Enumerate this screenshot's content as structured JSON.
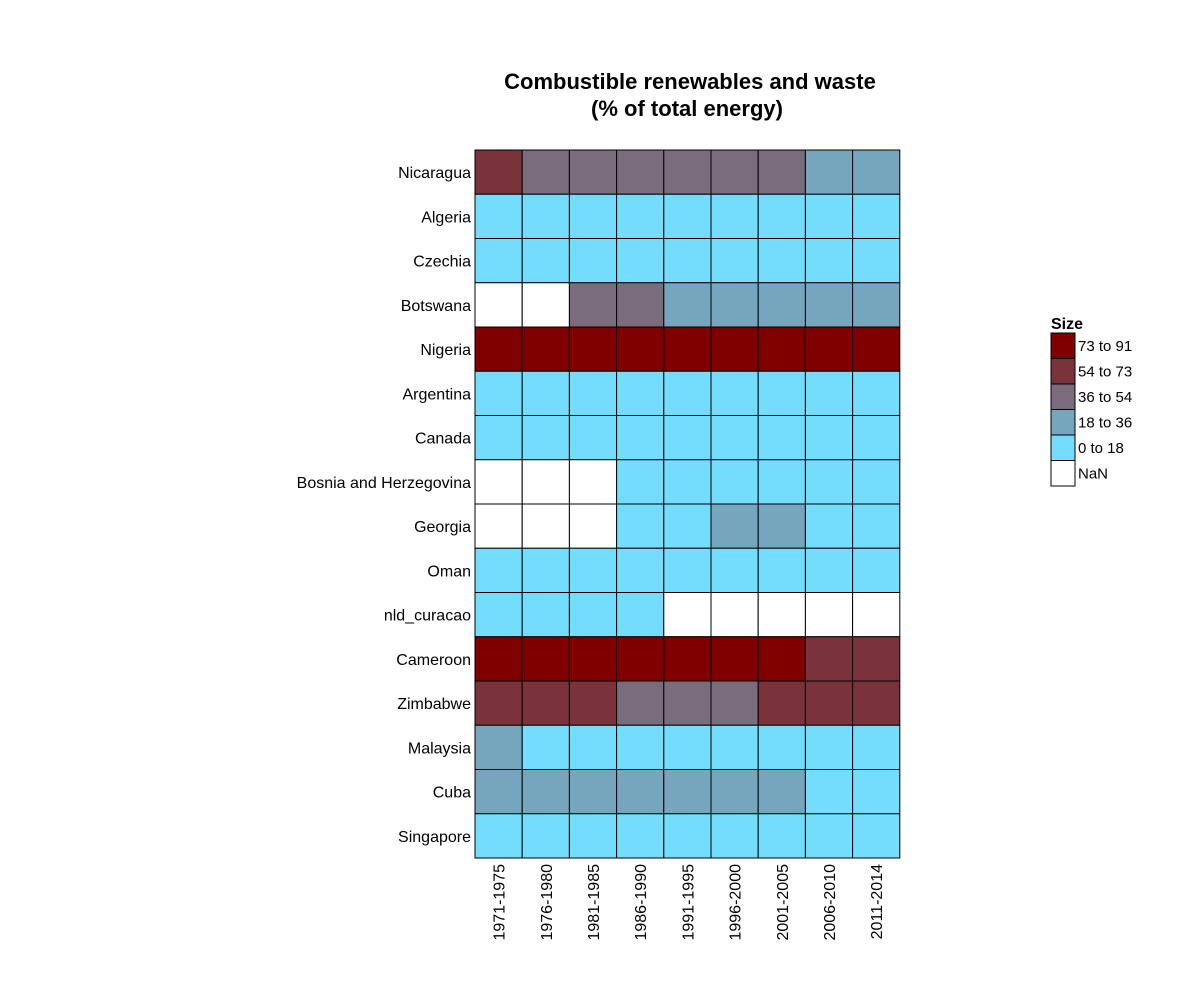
{
  "chart_data": {
    "type": "heatmap",
    "title_lines": [
      "Combustible renewables and waste",
      "(% of total energy)"
    ],
    "rows": [
      "Nicaragua",
      "Algeria",
      "Czechia",
      "Botswana",
      "Nigeria",
      "Argentina",
      "Canada",
      "Bosnia and Herzegovina",
      "Georgia",
      "Oman",
      "nld_curacao",
      "Cameroon",
      "Zimbabwe",
      "Malaysia",
      "Cuba",
      "Singapore"
    ],
    "columns": [
      "1971-1975",
      "1976-1980",
      "1981-1985",
      "1986-1990",
      "1991-1995",
      "1996-2000",
      "2001-2005",
      "2006-2010",
      "2011-2014"
    ],
    "cell_bins": [
      [
        "54 to 73",
        "36 to 54",
        "36 to 54",
        "36 to 54",
        "36 to 54",
        "36 to 54",
        "36 to 54",
        "18 to 36",
        "18 to 36"
      ],
      [
        "0 to 18",
        "0 to 18",
        "0 to 18",
        "0 to 18",
        "0 to 18",
        "0 to 18",
        "0 to 18",
        "0 to 18",
        "0 to 18"
      ],
      [
        "0 to 18",
        "0 to 18",
        "0 to 18",
        "0 to 18",
        "0 to 18",
        "0 to 18",
        "0 to 18",
        "0 to 18",
        "0 to 18"
      ],
      [
        "NaN",
        "NaN",
        "36 to 54",
        "36 to 54",
        "18 to 36",
        "18 to 36",
        "18 to 36",
        "18 to 36",
        "18 to 36"
      ],
      [
        "73 to 91",
        "73 to 91",
        "73 to 91",
        "73 to 91",
        "73 to 91",
        "73 to 91",
        "73 to 91",
        "73 to 91",
        "73 to 91"
      ],
      [
        "0 to 18",
        "0 to 18",
        "0 to 18",
        "0 to 18",
        "0 to 18",
        "0 to 18",
        "0 to 18",
        "0 to 18",
        "0 to 18"
      ],
      [
        "0 to 18",
        "0 to 18",
        "0 to 18",
        "0 to 18",
        "0 to 18",
        "0 to 18",
        "0 to 18",
        "0 to 18",
        "0 to 18"
      ],
      [
        "NaN",
        "NaN",
        "NaN",
        "0 to 18",
        "0 to 18",
        "0 to 18",
        "0 to 18",
        "0 to 18",
        "0 to 18"
      ],
      [
        "NaN",
        "NaN",
        "NaN",
        "0 to 18",
        "0 to 18",
        "18 to 36",
        "18 to 36",
        "0 to 18",
        "0 to 18"
      ],
      [
        "0 to 18",
        "0 to 18",
        "0 to 18",
        "0 to 18",
        "0 to 18",
        "0 to 18",
        "0 to 18",
        "0 to 18",
        "0 to 18"
      ],
      [
        "0 to 18",
        "0 to 18",
        "0 to 18",
        "0 to 18",
        "NaN",
        "NaN",
        "NaN",
        "NaN",
        "NaN"
      ],
      [
        "73 to 91",
        "73 to 91",
        "73 to 91",
        "73 to 91",
        "73 to 91",
        "73 to 91",
        "73 to 91",
        "54 to 73",
        "54 to 73"
      ],
      [
        "54 to 73",
        "54 to 73",
        "54 to 73",
        "36 to 54",
        "36 to 54",
        "36 to 54",
        "54 to 73",
        "54 to 73",
        "54 to 73"
      ],
      [
        "18 to 36",
        "0 to 18",
        "0 to 18",
        "0 to 18",
        "0 to 18",
        "0 to 18",
        "0 to 18",
        "0 to 18",
        "0 to 18"
      ],
      [
        "18 to 36",
        "18 to 36",
        "18 to 36",
        "18 to 36",
        "18 to 36",
        "18 to 36",
        "18 to 36",
        "0 to 18",
        "0 to 18"
      ],
      [
        "0 to 18",
        "0 to 18",
        "0 to 18",
        "0 to 18",
        "0 to 18",
        "0 to 18",
        "0 to 18",
        "0 to 18",
        "0 to 18"
      ]
    ],
    "legend": {
      "title": "Size",
      "placement": "right",
      "items": [
        {
          "label": "73 to 91",
          "color": "#800000"
        },
        {
          "label": "54 to 73",
          "color": "#7a333b"
        },
        {
          "label": "36 to 54",
          "color": "#7a6b7d"
        },
        {
          "label": "18 to 36",
          "color": "#76a5be"
        },
        {
          "label": "0 to 18",
          "color": "#74dcfc"
        },
        {
          "label": "NaN",
          "color": "#ffffff"
        }
      ]
    }
  }
}
